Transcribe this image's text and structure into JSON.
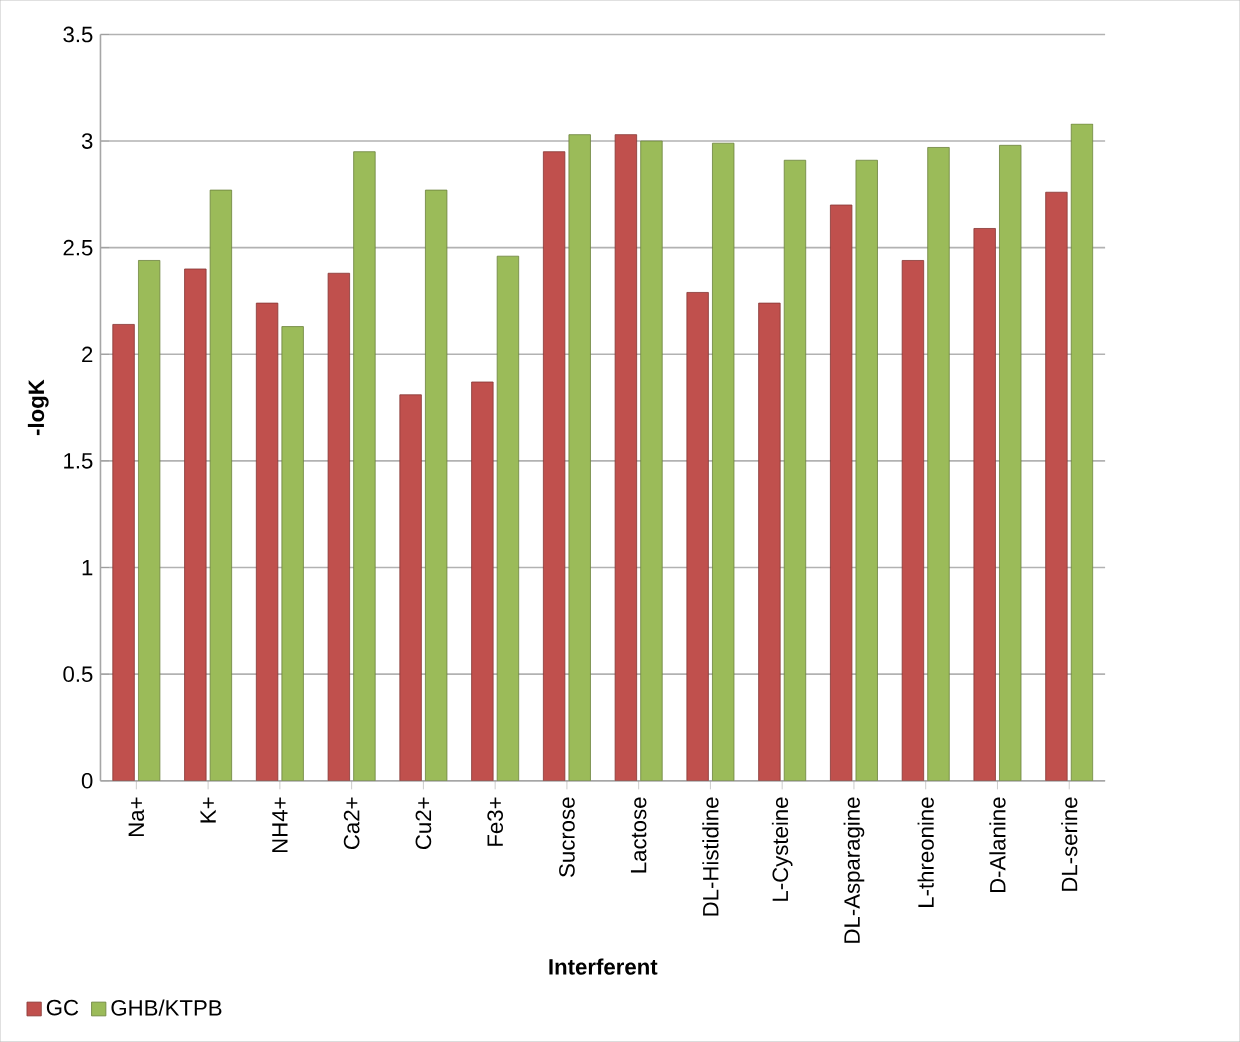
{
  "chart_data": {
    "type": "bar",
    "xlabel": "Interferent",
    "ylabel": "-logK",
    "categories": [
      "Na+",
      "K+",
      "NH4+",
      "Ca2+",
      "Cu2+",
      "Fe3+",
      "Sucrose",
      "Lactose",
      "DL-Histidine",
      "L-Cysteine",
      "DL-Asparagine",
      "L-threonine",
      "D-Alanine",
      "DL-serine"
    ],
    "series": [
      {
        "name": "GC",
        "color": "#c0504d",
        "values": [
          2.14,
          2.4,
          2.24,
          2.38,
          1.81,
          1.87,
          2.95,
          3.03,
          2.29,
          2.24,
          2.7,
          2.44,
          2.59,
          2.76
        ]
      },
      {
        "name": "GHB/KTPB",
        "color": "#9bbb59",
        "values": [
          2.44,
          2.77,
          2.13,
          2.95,
          2.77,
          2.46,
          3.03,
          3.0,
          2.99,
          2.91,
          2.91,
          2.97,
          2.98,
          3.08
        ]
      }
    ],
    "ylim": [
      0,
      3.5
    ],
    "yticks": [
      0,
      0.5,
      1,
      1.5,
      2,
      2.5,
      3,
      3.5
    ],
    "grid": "y",
    "legend": "bottom left"
  }
}
